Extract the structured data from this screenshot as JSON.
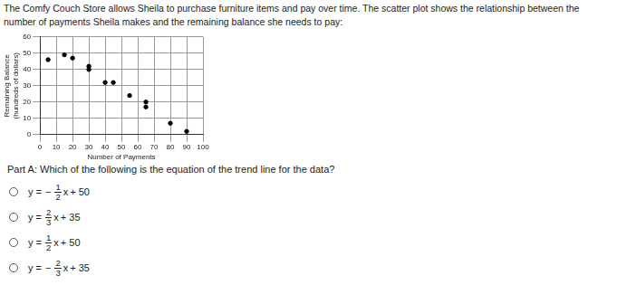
{
  "intro": [
    "The Comfy Couch Store allows Sheila to purchase furniture items and pay over time.  The scatter plot shows the relationship between the",
    "number of payments Sheila makes and the remaining balance she needs to pay:"
  ],
  "chart_data": {
    "type": "scatter",
    "x_label": "Number of Payments",
    "y_label": [
      "Remaining Balance",
      "(hundreds of dollars)"
    ],
    "x": [
      5,
      15,
      20,
      30,
      30,
      40,
      45,
      55,
      65,
      65,
      80,
      90
    ],
    "values": [
      46,
      49,
      47,
      42,
      40,
      32,
      32,
      24,
      20,
      17,
      7,
      2
    ],
    "color": "#000000",
    "marker": "circle",
    "xlim": [
      0,
      100
    ],
    "xticks": [
      0,
      10,
      20,
      30,
      40,
      50,
      60,
      70,
      80,
      90,
      100
    ],
    "ylim": [
      0,
      60
    ],
    "yticks": [
      0,
      10,
      20,
      30,
      40,
      50,
      60
    ],
    "grid": true
  },
  "question": "Part A: Which of the following is the equation of the trend line for the data?",
  "options": [
    {
      "lhs": "y =",
      "sign": "−",
      "numerator": "1",
      "denominator": "2",
      "var": "x",
      "rest": "+ 50"
    },
    {
      "lhs": "y =",
      "sign": "",
      "numerator": "2",
      "denominator": "3",
      "var": "x",
      "rest": "+ 35"
    },
    {
      "lhs": "y =",
      "sign": "",
      "numerator": "1",
      "denominator": "2",
      "var": "x",
      "rest": "+ 50"
    },
    {
      "lhs": "y =",
      "sign": "−",
      "numerator": "2",
      "denominator": "3",
      "var": "x",
      "rest": "+ 35"
    }
  ]
}
